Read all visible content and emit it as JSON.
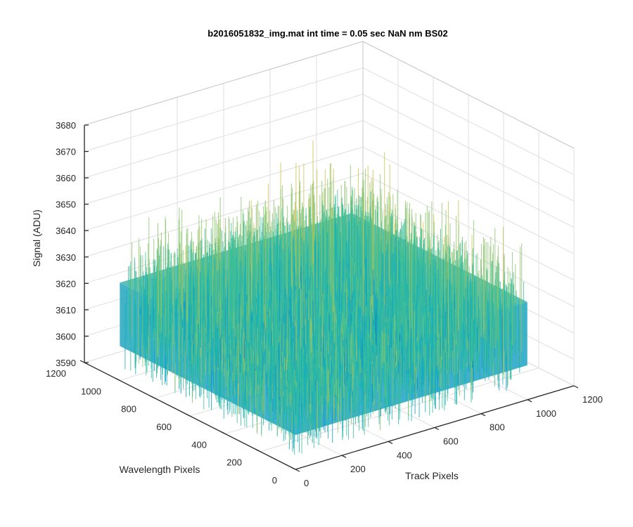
{
  "chart_data": {
    "type": "surface",
    "title": "b2016051832_img.mat int time = 0.05 sec  NaN nm BS02",
    "xlabel": "Track Pixels",
    "ylabel": "Wavelength Pixels",
    "zlabel": "Signal (ADU)",
    "xlim": [
      0,
      1200
    ],
    "ylim": [
      0,
      1200
    ],
    "zlim": [
      3590,
      3680
    ],
    "x_ticks": [
      0,
      200,
      400,
      600,
      800,
      1000,
      1200
    ],
    "y_ticks": [
      0,
      200,
      400,
      600,
      800,
      1000,
      1200
    ],
    "z_ticks": [
      3590,
      3600,
      3610,
      3620,
      3630,
      3640,
      3650,
      3660,
      3670,
      3680
    ],
    "surface_x_range": [
      1,
      1000
    ],
    "surface_y_range": [
      1,
      1000
    ],
    "signal_mean": 3625,
    "signal_range": [
      3595,
      3673
    ],
    "grid": true,
    "box": true,
    "colormap": "parula",
    "colormap_colors": [
      "#0072BD",
      "#0E97C9",
      "#17B0B8",
      "#3CBE9A",
      "#8CC46E",
      "#C9C24E",
      "#F2C63A"
    ]
  }
}
